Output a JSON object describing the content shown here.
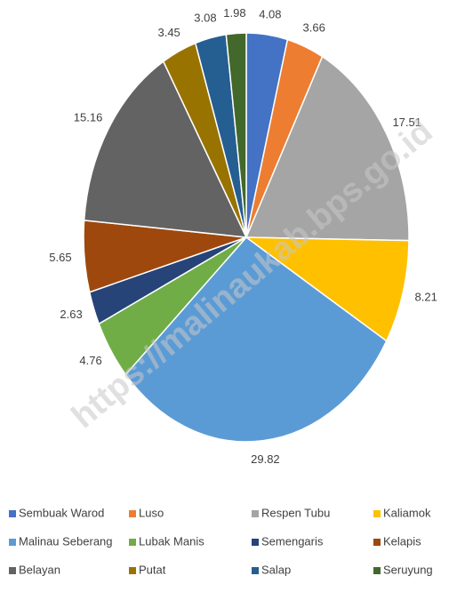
{
  "chart_data": {
    "type": "pie",
    "categories": [
      "Sembuak Warod",
      "Luso",
      "Respen Tubu",
      "Kaliamok",
      "Malinau Seberang",
      "Lubak Manis",
      "Semengaris",
      "Kelapis",
      "Belayan",
      "Putat",
      "Salap",
      "Seruyung"
    ],
    "values": [
      4.08,
      3.66,
      17.51,
      8.21,
      29.82,
      4.76,
      2.63,
      5.65,
      15.16,
      3.45,
      3.08,
      1.98
    ],
    "colors": [
      "#4472c4",
      "#ed7d31",
      "#a5a5a5",
      "#ffc000",
      "#5b9bd5",
      "#70ad47",
      "#264478",
      "#9e480e",
      "#636363",
      "#997300",
      "#255e91",
      "#43682b"
    ],
    "legend": "bottom",
    "watermark": "https://malinaukab.bps.go.id"
  }
}
